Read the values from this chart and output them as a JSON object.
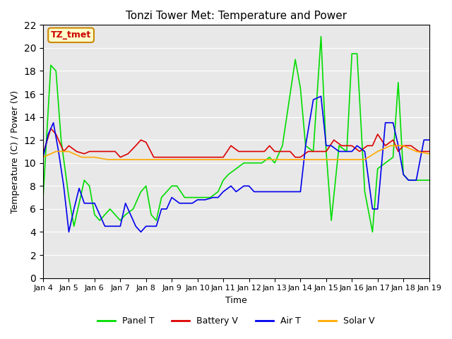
{
  "title": "Tonzi Tower Met: Temperature and Power",
  "xlabel": "Time",
  "ylabel": "Temperature (C) / Power (V)",
  "ylim": [
    0,
    22
  ],
  "yticks": [
    0,
    2,
    4,
    6,
    8,
    10,
    12,
    14,
    16,
    18,
    20,
    22
  ],
  "xlim": [
    0,
    15
  ],
  "xtick_labels": [
    "Jan 4",
    "Jan 5",
    "Jan 6",
    "Jan 7",
    "Jan 8",
    "Jan 9",
    "Jan 10",
    "Jan 11",
    "Jan 12",
    "Jan 13",
    "Jan 14",
    "Jan 15",
    "Jan 16",
    "Jan 17",
    "Jan 18",
    "Jan 19"
  ],
  "bg_color": "#e8e8e8",
  "grid_color": "#ffffff",
  "annotation_text": "TZ_tmet",
  "annotation_bg": "#ffffcc",
  "annotation_border": "#cc8800",
  "annotation_text_color": "#cc0000",
  "series": {
    "Panel T": {
      "color": "#00dd00",
      "x": [
        0,
        0.3,
        0.5,
        0.7,
        1.0,
        1.2,
        1.4,
        1.6,
        1.8,
        2.0,
        2.2,
        2.4,
        2.6,
        2.8,
        3.0,
        3.2,
        3.5,
        3.8,
        4.0,
        4.2,
        4.4,
        4.6,
        4.8,
        5.0,
        5.2,
        5.5,
        5.8,
        6.0,
        6.2,
        6.5,
        6.8,
        7.0,
        7.2,
        7.5,
        7.8,
        8.0,
        8.2,
        8.5,
        8.8,
        9.0,
        9.3,
        9.6,
        9.8,
        10.0,
        10.2,
        10.5,
        10.8,
        11.0,
        11.2,
        11.5,
        11.8,
        12.0,
        12.2,
        12.5,
        12.8,
        13.0,
        13.3,
        13.6,
        13.8,
        14.0,
        14.2,
        14.5,
        14.8,
        15.0
      ],
      "y": [
        7.0,
        18.5,
        18.0,
        12.0,
        7.0,
        4.5,
        6.5,
        8.5,
        8.0,
        5.5,
        5.0,
        5.5,
        6.0,
        5.5,
        5.0,
        5.5,
        6.0,
        7.5,
        8.0,
        5.5,
        5.0,
        7.0,
        7.5,
        8.0,
        8.0,
        7.0,
        7.0,
        7.0,
        7.0,
        7.0,
        7.5,
        8.5,
        9.0,
        9.5,
        10.0,
        10.0,
        10.0,
        10.0,
        10.5,
        10.0,
        11.5,
        16.0,
        19.0,
        16.5,
        11.5,
        11.0,
        21.0,
        11.0,
        5.0,
        11.5,
        11.0,
        19.5,
        19.5,
        7.5,
        4.0,
        9.5,
        10.0,
        10.5,
        17.0,
        9.0,
        8.5,
        8.5,
        8.5,
        8.5
      ]
    },
    "Battery V": {
      "color": "#dd0000",
      "x": [
        0,
        0.3,
        0.5,
        0.8,
        1.0,
        1.3,
        1.6,
        1.8,
        2.0,
        2.3,
        2.6,
        2.8,
        3.0,
        3.3,
        3.6,
        3.8,
        4.0,
        4.3,
        4.6,
        4.8,
        5.0,
        5.3,
        5.6,
        5.8,
        6.0,
        6.3,
        6.6,
        6.8,
        7.0,
        7.3,
        7.6,
        7.8,
        8.0,
        8.3,
        8.6,
        8.8,
        9.0,
        9.3,
        9.6,
        9.8,
        10.0,
        10.3,
        10.6,
        10.8,
        11.0,
        11.3,
        11.6,
        11.8,
        12.0,
        12.3,
        12.6,
        12.8,
        13.0,
        13.3,
        13.6,
        13.8,
        14.0,
        14.3,
        14.6,
        14.8,
        15.0
      ],
      "y": [
        10.8,
        13.0,
        12.5,
        11.0,
        11.5,
        11.0,
        10.8,
        11.0,
        11.0,
        11.0,
        11.0,
        11.0,
        10.5,
        10.8,
        11.5,
        12.0,
        11.8,
        10.5,
        10.5,
        10.5,
        10.5,
        10.5,
        10.5,
        10.5,
        10.5,
        10.5,
        10.5,
        10.5,
        10.5,
        11.5,
        11.0,
        11.0,
        11.0,
        11.0,
        11.0,
        11.5,
        11.0,
        11.0,
        11.0,
        10.5,
        10.5,
        11.0,
        11.0,
        11.0,
        11.0,
        12.0,
        11.5,
        11.5,
        11.5,
        11.0,
        11.5,
        11.5,
        12.5,
        11.5,
        12.0,
        11.0,
        11.5,
        11.5,
        11.0,
        11.0,
        11.0
      ]
    },
    "Air T": {
      "color": "#0000ee",
      "x": [
        0,
        0.2,
        0.4,
        0.6,
        0.8,
        1.0,
        1.2,
        1.4,
        1.6,
        1.8,
        2.0,
        2.2,
        2.4,
        2.6,
        2.8,
        3.0,
        3.2,
        3.4,
        3.6,
        3.8,
        4.0,
        4.2,
        4.4,
        4.6,
        4.8,
        5.0,
        5.3,
        5.6,
        5.8,
        6.0,
        6.3,
        6.6,
        6.8,
        7.0,
        7.3,
        7.5,
        7.8,
        8.0,
        8.2,
        8.5,
        8.8,
        9.0,
        9.2,
        9.5,
        9.8,
        10.0,
        10.2,
        10.5,
        10.8,
        11.0,
        11.2,
        11.5,
        11.8,
        12.0,
        12.2,
        12.5,
        12.8,
        13.0,
        13.3,
        13.6,
        13.8,
        14.0,
        14.2,
        14.5,
        14.8,
        15.0
      ],
      "y": [
        10.5,
        12.5,
        13.5,
        11.0,
        8.0,
        4.0,
        6.0,
        7.8,
        6.5,
        6.5,
        6.5,
        5.5,
        4.5,
        4.5,
        4.5,
        4.5,
        6.5,
        5.5,
        4.5,
        4.0,
        4.5,
        4.5,
        4.5,
        6.0,
        6.0,
        7.0,
        6.5,
        6.5,
        6.5,
        6.8,
        6.8,
        7.0,
        7.0,
        7.5,
        8.0,
        7.5,
        8.0,
        8.0,
        7.5,
        7.5,
        7.5,
        7.5,
        7.5,
        7.5,
        7.5,
        7.5,
        11.5,
        15.5,
        15.8,
        11.5,
        11.5,
        11.0,
        11.0,
        11.0,
        11.5,
        11.0,
        6.0,
        6.0,
        13.5,
        13.5,
        11.5,
        9.0,
        8.5,
        8.5,
        12.0,
        12.0
      ]
    },
    "Solar V": {
      "color": "#ffaa00",
      "x": [
        0,
        0.5,
        1.0,
        1.5,
        2.0,
        2.5,
        3.0,
        3.5,
        4.0,
        4.5,
        5.0,
        5.5,
        6.0,
        6.5,
        7.0,
        7.5,
        8.0,
        8.5,
        9.0,
        9.5,
        10.0,
        10.5,
        11.0,
        11.5,
        12.0,
        12.5,
        13.0,
        13.5,
        14.0,
        14.5,
        15.0
      ],
      "y": [
        10.5,
        11.0,
        11.0,
        10.5,
        10.5,
        10.3,
        10.3,
        10.3,
        10.3,
        10.3,
        10.3,
        10.3,
        10.3,
        10.3,
        10.3,
        10.3,
        10.3,
        10.3,
        10.3,
        10.3,
        10.3,
        10.3,
        10.3,
        10.3,
        10.3,
        10.3,
        11.0,
        11.5,
        11.5,
        11.0,
        10.8
      ]
    }
  },
  "legend_entries": [
    "Panel T",
    "Battery V",
    "Air T",
    "Solar V"
  ],
  "legend_colors": [
    "#00dd00",
    "#dd0000",
    "#0000ee",
    "#ffaa00"
  ]
}
